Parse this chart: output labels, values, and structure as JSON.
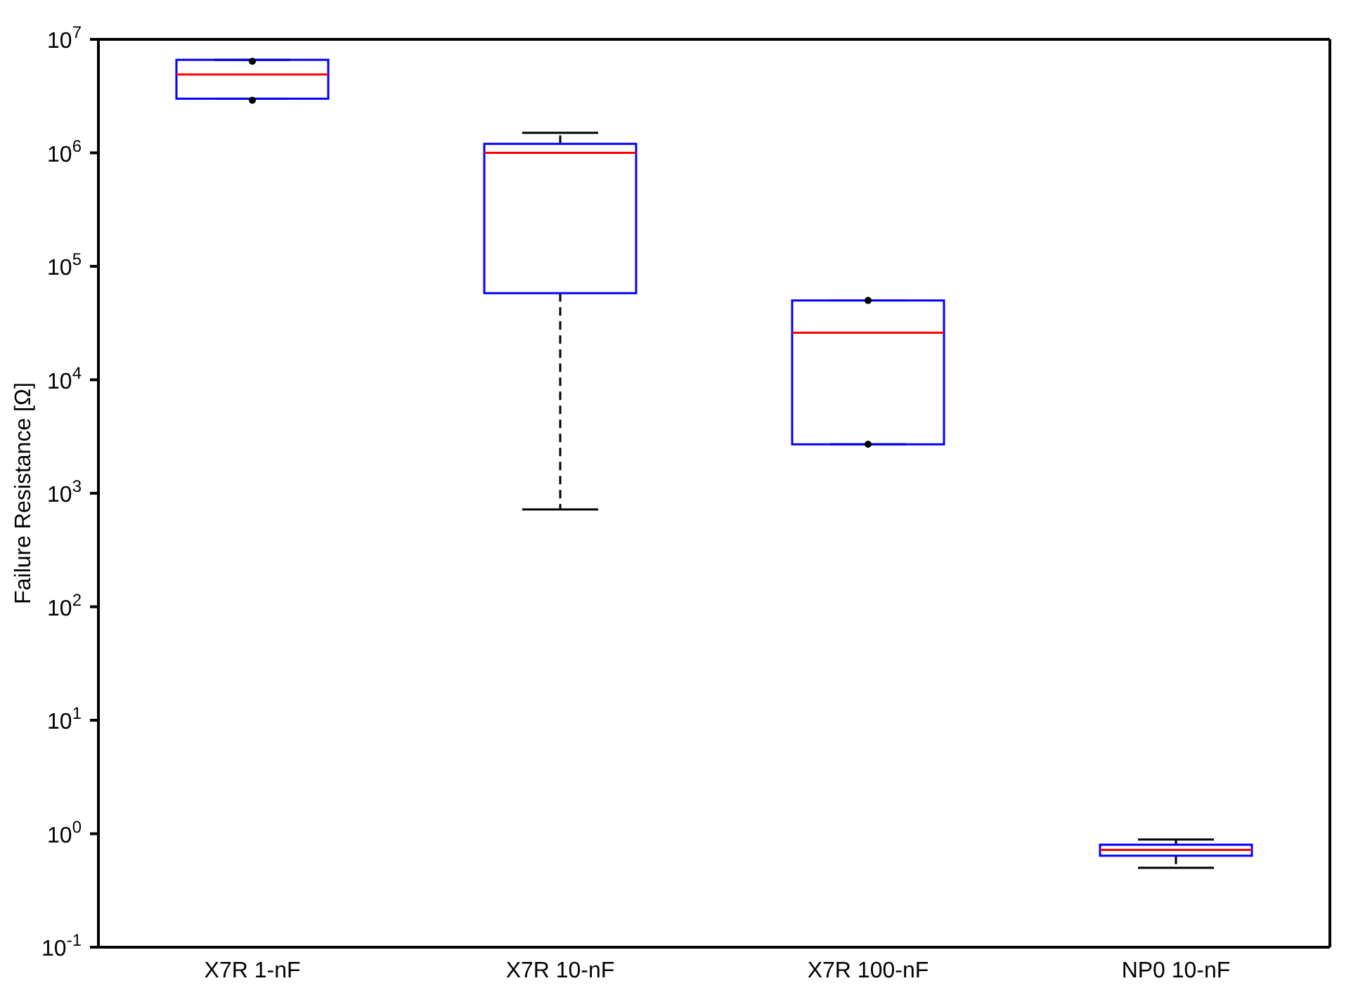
{
  "chart_data": {
    "type": "box",
    "ylabel": "Failure Resistance [Ω]",
    "categories": [
      "X7R 1-nF",
      "X7R 10-nF",
      "X7R 100-nF",
      "NP0 10-nF"
    ],
    "series": [
      {
        "color": "#0000ff",
        "boxes": [
          {
            "low": 3000000.0,
            "q1": 3000000.0,
            "median": 4900000.0,
            "q3": 6600000.0,
            "high": 6600000.0,
            "outliers": [
              6400000.0,
              2900000.0
            ]
          },
          {
            "low": 720,
            "q1": 58000.0,
            "median": 1000000.0,
            "q3": 1200000.0,
            "high": 1500000.0
          },
          {
            "low": 2700.0,
            "q1": 2700.0,
            "median": 26000.0,
            "q3": 50000.0,
            "high": 50000.0,
            "outliers": [
              50000.0,
              2700.0
            ]
          },
          {
            "low": 0.5,
            "q1": 0.64,
            "median": 0.72,
            "q3": 0.8,
            "high": 0.89
          }
        ]
      }
    ],
    "log": "y",
    "ylim": [
      0.1,
      10000000
    ],
    "yticks": [
      {
        "value": 0.1,
        "label": "10$^{-1}$"
      },
      {
        "value": 1,
        "label": "10$^{0}$"
      },
      {
        "value": 10,
        "label": "10$^{1}$"
      },
      {
        "value": 100,
        "label": "10$^{2}$"
      },
      {
        "value": 1000,
        "label": "10$^{3}$"
      },
      {
        "value": 10000,
        "label": "10$^{4}$"
      },
      {
        "value": 100000,
        "label": "10$^{5}$"
      },
      {
        "value": 1000000,
        "label": "10$^{6}$"
      },
      {
        "value": 10000000,
        "label": "10$^{7}$"
      }
    ],
    "grid": false,
    "legend": false
  }
}
